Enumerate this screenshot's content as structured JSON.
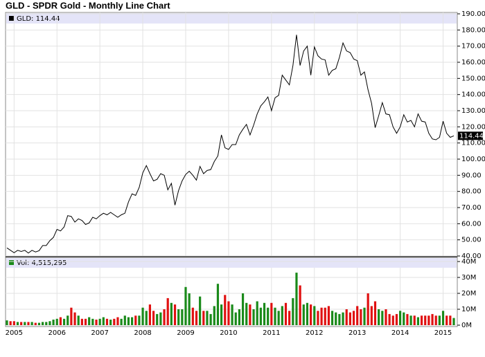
{
  "chart_data": {
    "type": "stock",
    "title": "GLD - SPDR Gold - Monthly Line Chart",
    "categories": [
      null,
      null,
      "2005",
      null,
      null,
      null,
      null,
      null,
      null,
      null,
      null,
      null,
      null,
      null,
      "2006",
      null,
      null,
      null,
      null,
      null,
      null,
      null,
      null,
      null,
      null,
      null,
      "2007",
      null,
      null,
      null,
      null,
      null,
      null,
      null,
      null,
      null,
      null,
      null,
      "2008",
      null,
      null,
      null,
      null,
      null,
      null,
      null,
      null,
      null,
      null,
      null,
      "2009",
      null,
      null,
      null,
      null,
      null,
      null,
      null,
      null,
      null,
      null,
      null,
      "2010",
      null,
      null,
      null,
      null,
      null,
      null,
      null,
      null,
      null,
      null,
      null,
      "2011",
      null,
      null,
      null,
      null,
      null,
      null,
      null,
      null,
      null,
      null,
      null,
      "2012",
      null,
      null,
      null,
      null,
      null,
      null,
      null,
      null,
      null,
      null,
      null,
      "2013",
      null,
      null,
      null,
      null,
      null,
      null,
      null,
      null,
      null,
      null,
      null,
      "2014",
      null,
      null,
      null,
      null,
      null,
      null,
      null,
      null,
      null,
      null,
      null,
      "2015",
      null,
      null,
      null
    ],
    "series": [
      {
        "name": "GLD",
        "legend": "GLD: 114.44",
        "last_value_label": "114.44",
        "color": "#000000",
        "values": [
          45,
          43.5,
          42,
          43.5,
          42.8,
          43.5,
          41.8,
          43.5,
          42.5,
          43.3,
          46.5,
          46.5,
          49.5,
          51.5,
          56.5,
          55.5,
          58,
          65,
          64.5,
          61,
          63,
          62,
          59.5,
          60.5,
          64,
          63,
          65,
          66.5,
          65.5,
          67,
          65.5,
          64,
          65.5,
          66.5,
          73.5,
          78.5,
          77.5,
          82.5,
          91.5,
          96,
          91,
          86.5,
          87.5,
          91,
          90,
          81,
          85,
          71.5,
          80.5,
          86.5,
          90.5,
          92.5,
          90,
          87,
          95.5,
          91,
          93,
          93.5,
          98.5,
          102,
          115,
          107,
          106,
          109,
          109,
          115,
          118.5,
          121.5,
          115,
          121,
          128,
          133,
          135.5,
          138.5,
          130,
          138,
          139.5,
          152,
          149,
          146,
          158,
          177,
          158,
          167,
          170,
          152,
          169.5,
          164,
          162,
          161.5,
          152,
          155,
          156,
          163,
          172,
          167,
          166,
          162,
          161,
          152,
          154,
          143,
          134.5,
          119.5,
          127,
          135,
          128,
          127.5,
          120,
          116,
          120,
          127.5,
          123,
          124,
          120,
          128,
          123.5,
          123,
          116,
          112.5,
          112,
          113.5,
          123.5,
          116,
          113.5,
          114.44
        ]
      },
      {
        "name": "Vol",
        "legend": "Vol: 4,515,295",
        "axis": "y2",
        "up_color": "#1a8a1a",
        "down_color": "#e01010",
        "values": [
          3,
          2.5,
          2.5,
          2,
          2,
          2,
          2,
          2,
          1.5,
          1.5,
          2,
          2,
          2.5,
          3.5,
          4,
          5,
          4,
          6,
          11,
          8,
          6,
          4,
          4,
          5,
          4,
          3.5,
          4,
          5,
          4,
          3.5,
          4,
          5,
          4,
          6,
          5,
          5,
          6,
          6,
          11,
          9,
          13,
          9,
          7,
          8,
          10,
          17,
          14,
          13,
          10,
          10,
          24,
          20,
          11,
          9,
          18,
          9,
          9,
          7,
          12,
          26,
          13,
          19,
          15,
          13,
          8,
          10,
          20,
          14,
          13,
          10,
          15,
          11,
          14,
          11,
          14,
          11,
          9,
          12,
          14,
          9,
          17,
          33,
          25,
          13,
          14,
          13,
          12,
          9,
          11,
          11,
          12,
          9,
          8,
          7,
          8,
          10,
          8,
          9,
          12,
          10,
          11,
          20,
          12,
          15,
          10,
          9,
          10,
          7,
          6,
          7,
          9,
          8,
          7,
          6,
          6,
          5,
          6,
          6,
          6,
          7,
          6,
          6,
          9,
          6,
          6,
          4.515295
        ]
      }
    ],
    "ylim": [
      40,
      190
    ],
    "yticks": [
      {
        "value": 40,
        "label": "40.00"
      },
      {
        "value": 50,
        "label": "50.00"
      },
      {
        "value": 60,
        "label": "60.00"
      },
      {
        "value": 70,
        "label": "70.00"
      },
      {
        "value": 80,
        "label": "80.00"
      },
      {
        "value": 90,
        "label": "90.00"
      },
      {
        "value": 100,
        "label": "100.00"
      },
      {
        "value": 110,
        "label": "110.00"
      },
      {
        "value": 120,
        "label": "120.00"
      },
      {
        "value": 130,
        "label": "130.00"
      },
      {
        "value": 140,
        "label": "140.00"
      },
      {
        "value": 150,
        "label": "150.00"
      },
      {
        "value": 160,
        "label": "160.00"
      },
      {
        "value": 170,
        "label": "170.00"
      },
      {
        "value": 180,
        "label": "180.00"
      },
      {
        "value": 190,
        "label": "190.00"
      }
    ],
    "y2lim": [
      0,
      40
    ],
    "y2ticks": [
      {
        "value": 0,
        "label": "0M"
      },
      {
        "value": 10,
        "label": "10M"
      },
      {
        "value": 20,
        "label": "20M"
      },
      {
        "value": 30,
        "label": "30M"
      },
      {
        "value": 40,
        "label": "40M"
      }
    ],
    "grid": true
  }
}
